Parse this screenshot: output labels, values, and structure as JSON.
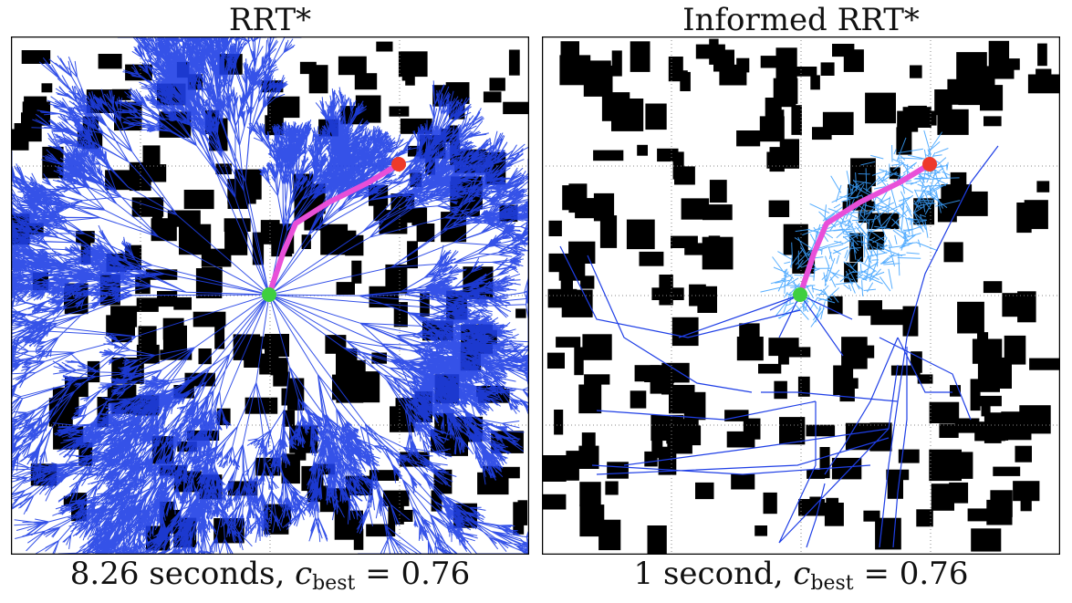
{
  "panels": [
    {
      "title": "RRT*",
      "caption_prefix": "8.26 seconds, ",
      "c_symbol": "c",
      "c_subscript": "best",
      "caption_suffix": " = 0.76",
      "planner": "RRT*",
      "time_text": "8.26 seconds",
      "c_best": 0.76
    },
    {
      "title": "Informed RRT*",
      "caption_prefix": "1 second, ",
      "c_symbol": "c",
      "c_subscript": "best",
      "caption_suffix": " = 0.76",
      "planner": "Informed RRT*",
      "time_text": "1 second",
      "c_best": 0.76
    }
  ],
  "colors": {
    "tree": "#1f3fe6",
    "tree_light": "#3aa0ff",
    "path": "#e84fd8",
    "start": "#3fcf3f",
    "goal": "#ee3a2a",
    "obstacle": "#000000",
    "grid": "#888888"
  },
  "icons": {
    "start": "green-start-dot",
    "goal": "red-goal-dot"
  }
}
